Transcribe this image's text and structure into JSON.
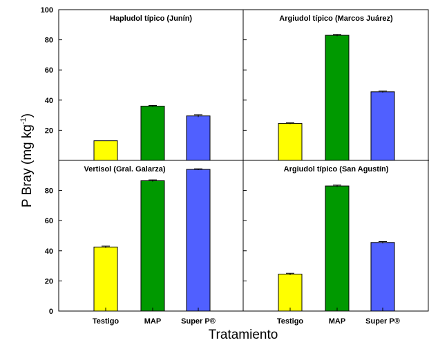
{
  "chart_data": {
    "type": "bar",
    "layout": "2x2 panels, shared axes",
    "ylabel_main": "P Bray (mg kg",
    "ylabel_sup": "-1",
    "ylabel_end": ")",
    "xlabel": "Tratamiento",
    "categories": [
      "Testigo",
      "MAP",
      "Super P®"
    ],
    "colors": [
      "#ffff00",
      "#009900",
      "#5060ff"
    ],
    "yaxis_top": {
      "ylim": [
        0,
        100
      ],
      "ticks": [
        "100",
        "80",
        "60",
        "40",
        "20"
      ]
    },
    "yaxis_bottom": {
      "ylim": [
        0,
        100
      ],
      "ticks": [
        "80",
        "60",
        "40",
        "20",
        "0"
      ]
    },
    "grid": false,
    "panels": [
      {
        "title": "Hapludol típico (Junín)",
        "values": [
          13,
          36,
          29.5
        ],
        "errors": [
          0,
          0.5,
          0.8
        ]
      },
      {
        "title": "Argiudol típico (Marcos Juárez)",
        "values": [
          24.5,
          83,
          45.5
        ],
        "errors": [
          0.4,
          0.6,
          0.5
        ]
      },
      {
        "title": "Vertisol (Gral. Galarza)",
        "values": [
          42.5,
          86.5,
          94
        ],
        "errors": [
          0.6,
          0.6,
          0.4
        ]
      },
      {
        "title": "Argiudol típico (San Agustín)",
        "values": [
          24.5,
          83,
          45.5
        ],
        "errors": [
          0.6,
          0.6,
          0.6
        ]
      }
    ]
  }
}
